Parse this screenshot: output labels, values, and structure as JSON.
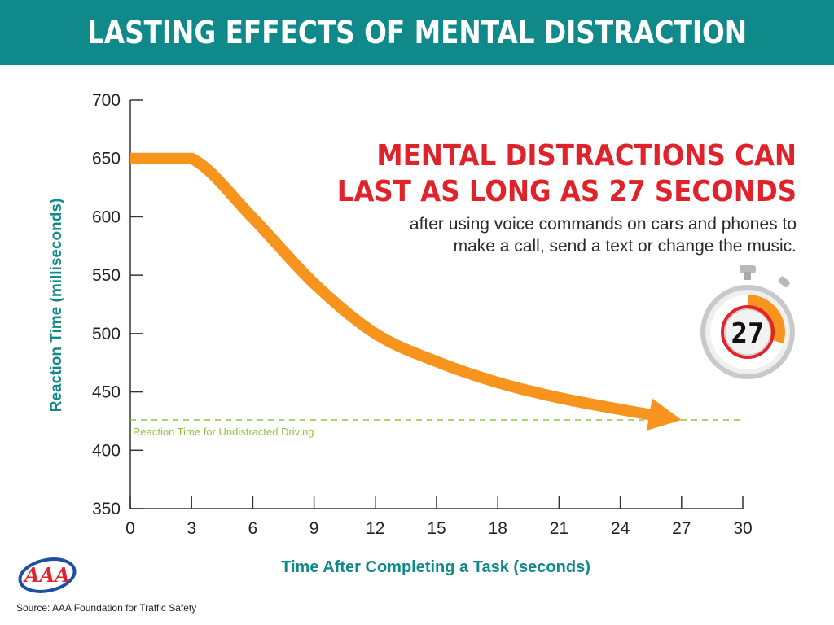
{
  "header": {
    "title": "LASTING EFFECTS OF MENTAL DISTRACTION"
  },
  "headline": {
    "line1": "MENTAL DISTRACTIONS CAN",
    "line2": "LAST AS LONG AS 27 SECONDS"
  },
  "subtext": {
    "line1": "after using voice commands on cars and phones to",
    "line2": "make a call, send a text or change the music."
  },
  "timer": {
    "value": "27",
    "fraction_filled": 0.3
  },
  "source": "Source: AAA Foundation for Traffic Safety",
  "logo": {
    "text": "AAA"
  },
  "colors": {
    "teal": "#10898b",
    "orange": "#f7941d",
    "red": "#e0222a",
    "green": "#8dc63f"
  },
  "chart_data": {
    "type": "line",
    "xlabel": "Time After Completing a Task (seconds)",
    "ylabel": "Reaction Time (milliseconds)",
    "xlim": [
      0,
      30
    ],
    "ylim": [
      350,
      700
    ],
    "xticks": [
      0,
      3,
      6,
      9,
      12,
      15,
      18,
      21,
      24,
      27,
      30
    ],
    "yticks": [
      350,
      400,
      450,
      500,
      550,
      600,
      650,
      700
    ],
    "series": [
      {
        "values": [
          {
            "x": 0,
            "y": 650
          },
          {
            "x": 3,
            "y": 650
          },
          {
            "x": 6,
            "y": 599
          },
          {
            "x": 9,
            "y": 543
          },
          {
            "x": 12,
            "y": 500
          },
          {
            "x": 15,
            "y": 476
          },
          {
            "x": 18,
            "y": 458
          },
          {
            "x": 21,
            "y": 445
          },
          {
            "x": 24,
            "y": 435
          },
          {
            "x": 27,
            "y": 426
          }
        ]
      }
    ],
    "reference_line": {
      "y": 426,
      "label": "Reaction Time for Undistracted Driving"
    }
  }
}
